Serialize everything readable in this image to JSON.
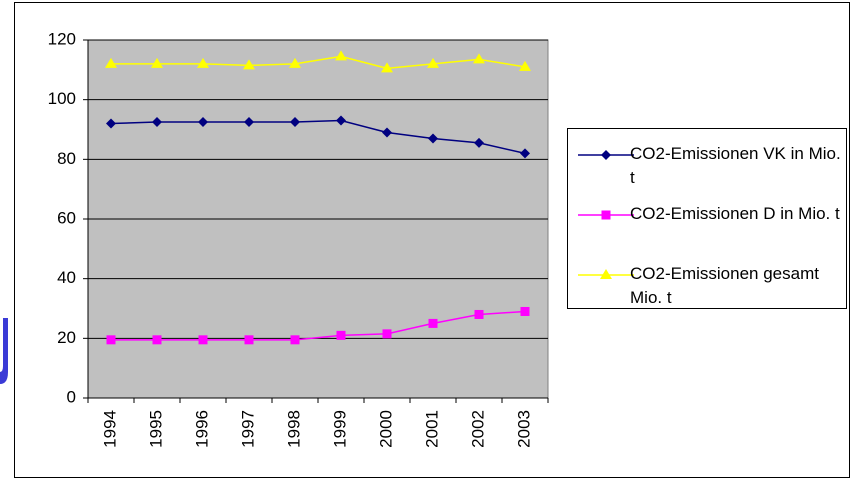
{
  "chart_data": {
    "type": "line",
    "categories": [
      "1994",
      "1995",
      "1996",
      "1997",
      "1998",
      "1999",
      "2000",
      "2001",
      "2002",
      "2003"
    ],
    "series": [
      {
        "name": "CO2-Emissionen VK in Mio. t",
        "color": "#000080",
        "marker": "diamond",
        "values": [
          92,
          92.5,
          92.5,
          92.5,
          92.5,
          93,
          89,
          87,
          85.5,
          82
        ]
      },
      {
        "name": "CO2-Emissionen D in Mio. t",
        "color": "#ff00ff",
        "marker": "square",
        "values": [
          19.5,
          19.5,
          19.5,
          19.5,
          19.5,
          21,
          21.5,
          25,
          28,
          29
        ]
      },
      {
        "name": "CO2-Emissionen gesamt Mio. t",
        "color": "#ffff00",
        "marker": "triangle",
        "values": [
          112,
          112,
          112,
          111.5,
          112,
          114.5,
          110.5,
          112,
          113.5,
          111
        ]
      }
    ],
    "ylim": [
      0,
      120
    ],
    "yticks": [
      0,
      20,
      40,
      60,
      80,
      100,
      120
    ],
    "grid": true,
    "legend": "right"
  }
}
